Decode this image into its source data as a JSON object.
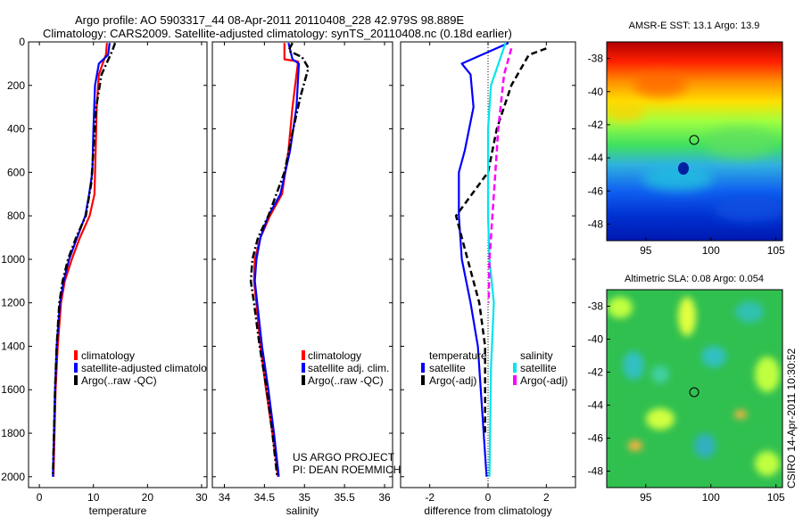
{
  "title_line1": "Argo profile: AO 5903317_44 08-Apr-2011 20110408_228 42.979S 98.889E",
  "title_line2": "Climatology: CARS2009. Satellite-adjusted climatology: synTS_20110408.nc (0.18d earlier)",
  "footer_project": "US ARGO PROJECT",
  "footer_pi": "PI: DEAN ROEMMICH",
  "side_stamp": "CSIRO 14-Apr-2011 10:30:52",
  "colors": {
    "climatology": "#ff0000",
    "satellite": "#0000ff",
    "argo": "#000000",
    "sal_satellite": "#00e5ee",
    "sal_argo": "#ff00ff"
  },
  "chart_data": [
    {
      "type": "line",
      "xlabel": "temperature",
      "xlim": [
        -2,
        31
      ],
      "xticks": [
        0,
        10,
        20,
        30
      ],
      "ylim": [
        2050,
        0
      ],
      "yticks": [
        0,
        200,
        400,
        600,
        800,
        1000,
        1200,
        1400,
        1600,
        1800,
        2000
      ],
      "legend": [
        "climatology",
        "satellite-adjusted climatolo",
        "Argo(..raw -QC)"
      ],
      "series": [
        {
          "name": "climatology",
          "style": "solid",
          "color": "#ff0000",
          "points": [
            [
              12.5,
              5
            ],
            [
              12.3,
              60
            ],
            [
              12.0,
              80
            ],
            [
              11.0,
              150
            ],
            [
              10.6,
              300
            ],
            [
              10.4,
              500
            ],
            [
              10.2,
              700
            ],
            [
              9.3,
              800
            ],
            [
              7.5,
              900
            ],
            [
              6.0,
              1000
            ],
            [
              4.7,
              1100
            ],
            [
              4.0,
              1200
            ],
            [
              3.4,
              1400
            ],
            [
              3.0,
              1600
            ],
            [
              2.8,
              1800
            ],
            [
              2.6,
              2000
            ]
          ]
        },
        {
          "name": "satellite-adjusted climatolo",
          "style": "solid",
          "color": "#0000ff",
          "points": [
            [
              13.0,
              5
            ],
            [
              12.7,
              60
            ],
            [
              11.0,
              100
            ],
            [
              10.3,
              200
            ],
            [
              10.0,
              400
            ],
            [
              9.8,
              600
            ],
            [
              9.2,
              700
            ],
            [
              8.5,
              800
            ],
            [
              7.0,
              900
            ],
            [
              5.5,
              1000
            ],
            [
              4.5,
              1100
            ],
            [
              3.8,
              1200
            ],
            [
              3.2,
              1400
            ],
            [
              2.9,
              1600
            ],
            [
              2.7,
              1800
            ],
            [
              2.5,
              2000
            ]
          ]
        },
        {
          "name": "Argo(..raw -QC)",
          "style": "dashdot",
          "color": "#000000",
          "points": [
            [
              14.0,
              5
            ],
            [
              13.5,
              40
            ],
            [
              11.5,
              150
            ],
            [
              10.5,
              300
            ],
            [
              10.0,
              500
            ],
            [
              9.6,
              650
            ],
            [
              8.6,
              800
            ],
            [
              6.8,
              900
            ],
            [
              5.3,
              1000
            ],
            [
              4.3,
              1100
            ],
            [
              3.7,
              1200
            ],
            [
              3.2,
              1400
            ],
            [
              2.9,
              1600
            ],
            [
              2.7,
              1800
            ],
            [
              2.5,
              2000
            ]
          ]
        }
      ]
    },
    {
      "type": "line",
      "xlabel": "salinity",
      "xlim": [
        33.85,
        36.1
      ],
      "xticks": [
        34,
        34.5,
        35,
        35.5,
        36
      ],
      "xtick_labels": [
        "34",
        "34.5",
        "35",
        "35.5",
        "36"
      ],
      "ylim": [
        2050,
        0
      ],
      "legend": [
        "climatology",
        "satellite adj. clim.",
        "Argo(..raw -QC)"
      ],
      "series": [
        {
          "name": "climatology",
          "style": "solid",
          "color": "#ff0000",
          "points": [
            [
              34.75,
              5
            ],
            [
              34.75,
              80
            ],
            [
              34.92,
              90
            ],
            [
              34.9,
              150
            ],
            [
              34.85,
              300
            ],
            [
              34.8,
              500
            ],
            [
              34.72,
              700
            ],
            [
              34.57,
              800
            ],
            [
              34.45,
              900
            ],
            [
              34.38,
              1000
            ],
            [
              34.37,
              1100
            ],
            [
              34.4,
              1200
            ],
            [
              34.45,
              1400
            ],
            [
              34.52,
              1600
            ],
            [
              34.6,
              1800
            ],
            [
              34.67,
              2000
            ]
          ]
        },
        {
          "name": "satellite adj. clim.",
          "style": "solid",
          "color": "#0000ff",
          "points": [
            [
              34.8,
              5
            ],
            [
              34.85,
              80
            ],
            [
              34.93,
              100
            ],
            [
              34.9,
              300
            ],
            [
              34.82,
              500
            ],
            [
              34.7,
              700
            ],
            [
              34.55,
              800
            ],
            [
              34.45,
              900
            ],
            [
              34.4,
              1000
            ],
            [
              34.38,
              1100
            ],
            [
              34.41,
              1200
            ],
            [
              34.47,
              1400
            ],
            [
              34.55,
              1600
            ],
            [
              34.62,
              1800
            ],
            [
              34.68,
              2000
            ]
          ]
        },
        {
          "name": "Argo(..raw -QC)",
          "style": "dashdot",
          "color": "#000000",
          "points": [
            [
              34.85,
              5
            ],
            [
              34.8,
              40
            ],
            [
              34.97,
              70
            ],
            [
              35.05,
              120
            ],
            [
              34.95,
              250
            ],
            [
              34.86,
              400
            ],
            [
              34.75,
              600
            ],
            [
              34.55,
              800
            ],
            [
              34.42,
              900
            ],
            [
              34.35,
              1000
            ],
            [
              34.33,
              1100
            ],
            [
              34.37,
              1200
            ],
            [
              34.44,
              1400
            ],
            [
              34.53,
              1600
            ],
            [
              34.6,
              1800
            ],
            [
              34.66,
              2000
            ]
          ]
        }
      ]
    },
    {
      "type": "line",
      "xlabel": "difference from climatology",
      "xlim": [
        -3,
        3
      ],
      "xticks": [
        -2,
        0,
        2
      ],
      "xtick_labels": [
        "-2",
        "0",
        "2"
      ],
      "ylim": [
        2050,
        0
      ],
      "legend_temperature_title": "temperature",
      "legend_salinity_title": "salinity",
      "legend_temperature": [
        "satellite",
        "Argo(-adj)"
      ],
      "legend_salinity": [
        "satellite",
        "Argo(-adj)"
      ],
      "series": [
        {
          "name": "temperature satellite",
          "style": "solid",
          "color": "#0000ff",
          "points": [
            [
              0.7,
              5
            ],
            [
              -0.9,
              100
            ],
            [
              -0.6,
              150
            ],
            [
              -0.5,
              300
            ],
            [
              -0.8,
              500
            ],
            [
              -1.0,
              600
            ],
            [
              -1.0,
              800
            ],
            [
              -0.9,
              1000
            ],
            [
              -0.6,
              1200
            ],
            [
              -0.35,
              1400
            ],
            [
              -0.15,
              1800
            ],
            [
              -0.05,
              2000
            ]
          ]
        },
        {
          "name": "temperature Argo(-adj)",
          "style": "dashed",
          "color": "#000000",
          "points": [
            [
              2.0,
              30
            ],
            [
              1.4,
              60
            ],
            [
              0.8,
              200
            ],
            [
              0.3,
              400
            ],
            [
              0.0,
              600
            ],
            [
              -1.1,
              800
            ],
            [
              -0.7,
              1000
            ],
            [
              -0.3,
              1200
            ],
            [
              -0.1,
              1400
            ],
            [
              -0.1,
              1800
            ]
          ]
        },
        {
          "name": "salinity satellite",
          "style": "solid",
          "color": "#00e5ee",
          "points": [
            [
              0.6,
              5
            ],
            [
              0.1,
              200
            ],
            [
              0.0,
              400
            ],
            [
              0.0,
              800
            ],
            [
              0.05,
              1000
            ],
            [
              0.2,
              1200
            ],
            [
              0.1,
              1500
            ],
            [
              0.05,
              2000
            ]
          ]
        },
        {
          "name": "salinity Argo(-adj)",
          "style": "dashed",
          "color": "#ff00ff",
          "points": [
            [
              0.8,
              30
            ],
            [
              0.55,
              150
            ],
            [
              0.35,
              400
            ],
            [
              0.25,
              600
            ],
            [
              0.15,
              800
            ],
            [
              0.05,
              1000
            ],
            [
              0.02,
              1200
            ]
          ]
        }
      ]
    },
    {
      "type": "heatmap",
      "title": "AMSR-E SST: 13.1 Argo: 13.9",
      "xlim": [
        92,
        105.5
      ],
      "ylim": [
        -49,
        -37
      ],
      "xticks": [
        95,
        100,
        105
      ],
      "yticks": [
        -38,
        -40,
        -42,
        -44,
        -46,
        -48
      ],
      "marker": [
        98.889,
        -42.979
      ]
    },
    {
      "type": "heatmap",
      "title": "Altimetric SLA: 0.08 Argo: 0.054",
      "xlim": [
        92,
        105.5
      ],
      "ylim": [
        -49,
        -37
      ],
      "xticks": [
        95,
        100,
        105
      ],
      "yticks": [
        -38,
        -40,
        -42,
        -44,
        -46,
        -48
      ],
      "marker": [
        98.889,
        -42.979
      ]
    }
  ]
}
